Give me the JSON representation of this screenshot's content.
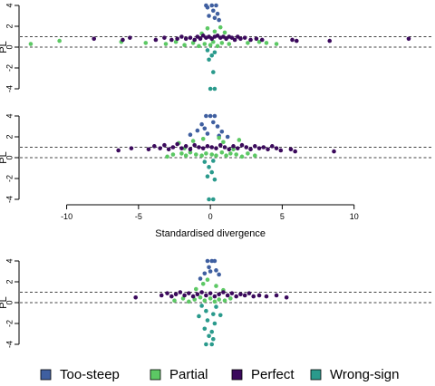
{
  "chart_data": {
    "type": "scatter",
    "xlabel": "Standardised divergence",
    "xlim": [
      -13,
      15
    ],
    "x_ticks": [
      -10,
      -5,
      0,
      5,
      10
    ],
    "colors": {
      "Too-steep": "#3f5fa0",
      "Partial": "#5cc864",
      "Perfect": "#3b0a5c",
      "Wrong-sign": "#2a9a8c"
    },
    "legend": {
      "placement": "bottom",
      "entries": [
        "Too-steep",
        "Partial",
        "Perfect",
        "Wrong-sign"
      ]
    },
    "panels": [
      {
        "ylabel": "PL",
        "ylim": [
          -4,
          4
        ],
        "y_ticks": [
          4,
          2,
          0,
          -2,
          -4
        ],
        "hlines": [
          0,
          1
        ],
        "show_x_axis": false,
        "series": [
          {
            "name": "Too-steep",
            "points": [
              [
                -0.3,
                4
              ],
              [
                0.1,
                4
              ],
              [
                0.4,
                4
              ],
              [
                -0.2,
                3.8
              ],
              [
                0.2,
                3.5
              ],
              [
                0.5,
                3.2
              ],
              [
                -0.1,
                3.0
              ],
              [
                0.3,
                2.8
              ],
              [
                0.6,
                2.6
              ]
            ]
          },
          {
            "name": "Partial",
            "points": [
              [
                -12.5,
                0.3
              ],
              [
                -10.5,
                0.6
              ],
              [
                -6.2,
                0.5
              ],
              [
                -4.5,
                0.4
              ],
              [
                -3.1,
                0.3
              ],
              [
                -2.4,
                0.5
              ],
              [
                -1.8,
                0.2
              ],
              [
                -1.2,
                0.4
              ],
              [
                -0.8,
                0.1
              ],
              [
                -0.4,
                0.3
              ],
              [
                0.0,
                0.2
              ],
              [
                0.2,
                0.5
              ],
              [
                0.5,
                0.1
              ],
              [
                0.8,
                0.4
              ],
              [
                1.3,
                0.3
              ],
              [
                2.6,
                0.4
              ],
              [
                3.4,
                0.5
              ],
              [
                3.9,
                0.4
              ],
              [
                4.6,
                0.3
              ],
              [
                -0.2,
                1.8
              ],
              [
                0.3,
                1.5
              ],
              [
                0.7,
                1.9
              ],
              [
                -0.6,
                1.3
              ],
              [
                1.0,
                1.4
              ]
            ]
          },
          {
            "name": "Perfect",
            "points": [
              [
                -8.1,
                0.8
              ],
              [
                -6.1,
                0.7
              ],
              [
                -5.6,
                0.9
              ],
              [
                -3.8,
                0.7
              ],
              [
                -3.2,
                0.9
              ],
              [
                -2.7,
                0.7
              ],
              [
                -2.3,
                0.8
              ],
              [
                -2.0,
                1.0
              ],
              [
                -1.7,
                0.8
              ],
              [
                -1.4,
                0.9
              ],
              [
                -1.1,
                0.7
              ],
              [
                -0.9,
                1.0
              ],
              [
                -0.7,
                0.8
              ],
              [
                -0.5,
                1.1
              ],
              [
                -0.3,
                0.9
              ],
              [
                -0.1,
                1.0
              ],
              [
                0.1,
                0.8
              ],
              [
                0.3,
                1.0
              ],
              [
                0.5,
                1.1
              ],
              [
                0.7,
                0.9
              ],
              [
                0.9,
                1.0
              ],
              [
                1.1,
                0.8
              ],
              [
                1.3,
                1.0
              ],
              [
                1.5,
                0.9
              ],
              [
                1.7,
                0.7
              ],
              [
                1.9,
                1.0
              ],
              [
                2.1,
                0.8
              ],
              [
                2.4,
                0.9
              ],
              [
                2.8,
                0.7
              ],
              [
                3.2,
                0.8
              ],
              [
                3.6,
                0.7
              ],
              [
                5.7,
                0.7
              ],
              [
                6.0,
                0.6
              ],
              [
                8.3,
                0.6
              ],
              [
                13.8,
                0.8
              ]
            ]
          },
          {
            "name": "Wrong-sign",
            "points": [
              [
                -0.2,
                -0.3
              ],
              [
                0.3,
                -0.5
              ],
              [
                0.1,
                -0.8
              ],
              [
                -0.1,
                -1.2
              ],
              [
                0.2,
                -2.4
              ],
              [
                0.0,
                -4.0
              ],
              [
                0.3,
                -4.0
              ]
            ]
          }
        ]
      },
      {
        "ylabel": "PL",
        "ylim": [
          -4,
          4
        ],
        "y_ticks": [
          4,
          2,
          0,
          -2,
          -4
        ],
        "hlines": [
          0,
          1
        ],
        "show_x_axis": true,
        "series": [
          {
            "name": "Too-steep",
            "points": [
              [
                -0.3,
                4
              ],
              [
                0.0,
                4
              ],
              [
                0.3,
                4
              ],
              [
                -0.6,
                3.2
              ],
              [
                0.2,
                3.4
              ],
              [
                -0.4,
                2.8
              ],
              [
                0.5,
                3.0
              ],
              [
                -0.9,
                2.6
              ],
              [
                0.8,
                2.5
              ],
              [
                -1.4,
                2.2
              ],
              [
                1.2,
                2.0
              ],
              [
                -0.2,
                2.3
              ],
              [
                0.6,
                2.1
              ]
            ]
          },
          {
            "name": "Partial",
            "points": [
              [
                -3.0,
                0.1
              ],
              [
                -2.6,
                0.3
              ],
              [
                -2.0,
                0.4
              ],
              [
                -1.7,
                0.2
              ],
              [
                -1.4,
                0.5
              ],
              [
                -1.0,
                0.3
              ],
              [
                -0.6,
                0.2
              ],
              [
                -0.3,
                0.4
              ],
              [
                0.1,
                0.3
              ],
              [
                0.4,
                0.2
              ],
              [
                0.8,
                0.5
              ],
              [
                1.1,
                0.2
              ],
              [
                1.4,
                0.4
              ],
              [
                1.8,
                0.3
              ],
              [
                2.2,
                0.1
              ],
              [
                2.6,
                0.4
              ],
              [
                3.1,
                0.2
              ],
              [
                -1.2,
                1.6
              ],
              [
                0.9,
                1.5
              ],
              [
                -2.2,
                1.4
              ],
              [
                2.0,
                1.7
              ],
              [
                -0.5,
                1.8
              ],
              [
                0.6,
                1.9
              ],
              [
                -1.8,
                0.9
              ],
              [
                1.6,
                0.8
              ]
            ]
          },
          {
            "name": "Perfect",
            "points": [
              [
                -6.4,
                0.7
              ],
              [
                -5.5,
                0.9
              ],
              [
                -4.3,
                0.8
              ],
              [
                -3.9,
                1.1
              ],
              [
                -3.5,
                0.9
              ],
              [
                -3.2,
                1.2
              ],
              [
                -2.9,
                0.8
              ],
              [
                -2.6,
                1.0
              ],
              [
                -2.3,
                1.3
              ],
              [
                -2.0,
                0.9
              ],
              [
                -1.7,
                1.1
              ],
              [
                -1.4,
                0.8
              ],
              [
                -1.1,
                1.2
              ],
              [
                -0.8,
                1.0
              ],
              [
                -0.5,
                0.9
              ],
              [
                -0.2,
                1.1
              ],
              [
                0.1,
                1.0
              ],
              [
                0.4,
                0.9
              ],
              [
                0.7,
                1.2
              ],
              [
                1.0,
                1.0
              ],
              [
                1.3,
                0.8
              ],
              [
                1.6,
                1.1
              ],
              [
                1.9,
                0.9
              ],
              [
                2.2,
                1.2
              ],
              [
                2.5,
                1.0
              ],
              [
                2.8,
                0.8
              ],
              [
                3.1,
                1.1
              ],
              [
                3.4,
                0.9
              ],
              [
                3.7,
                1.0
              ],
              [
                4.0,
                0.8
              ],
              [
                4.3,
                1.1
              ],
              [
                4.6,
                0.9
              ],
              [
                4.9,
                0.7
              ],
              [
                5.6,
                0.8
              ],
              [
                5.9,
                0.6
              ],
              [
                8.6,
                0.6
              ]
            ]
          },
          {
            "name": "Wrong-sign",
            "points": [
              [
                -0.4,
                -0.4
              ],
              [
                0.2,
                -0.3
              ],
              [
                -0.1,
                -0.9
              ],
              [
                0.1,
                -1.4
              ],
              [
                -0.2,
                -1.8
              ],
              [
                0.3,
                -2.1
              ],
              [
                -0.1,
                -4.0
              ],
              [
                0.2,
                -4.0
              ]
            ]
          }
        ]
      },
      {
        "ylabel": "PL",
        "ylim": [
          -4,
          4
        ],
        "y_ticks": [
          4,
          2,
          0,
          -2,
          -4
        ],
        "hlines": [
          0,
          1
        ],
        "show_x_axis": false,
        "series": [
          {
            "name": "Too-steep",
            "points": [
              [
                -0.2,
                4
              ],
              [
                0.1,
                4
              ],
              [
                0.3,
                4
              ],
              [
                -0.1,
                3.4
              ],
              [
                0.4,
                3.1
              ],
              [
                -0.4,
                2.8
              ],
              [
                0.6,
                2.7
              ],
              [
                0.0,
                3.0
              ],
              [
                -0.7,
                2.3
              ]
            ]
          },
          {
            "name": "Partial",
            "points": [
              [
                -2.5,
                0.2
              ],
              [
                -1.9,
                0.4
              ],
              [
                -1.5,
                0.1
              ],
              [
                -1.1,
                0.3
              ],
              [
                -0.7,
                0.5
              ],
              [
                -0.4,
                0.2
              ],
              [
                0.0,
                0.4
              ],
              [
                0.3,
                0.1
              ],
              [
                0.6,
                0.3
              ],
              [
                1.0,
                0.2
              ],
              [
                1.4,
                0.4
              ],
              [
                -0.5,
                1.8
              ],
              [
                0.4,
                1.6
              ],
              [
                -1.0,
                1.3
              ],
              [
                0.9,
                1.2
              ],
              [
                -0.2,
                2.2
              ]
            ]
          },
          {
            "name": "Perfect",
            "points": [
              [
                -5.2,
                0.5
              ],
              [
                -3.4,
                0.7
              ],
              [
                -3.0,
                0.9
              ],
              [
                -2.7,
                0.6
              ],
              [
                -2.4,
                0.8
              ],
              [
                -2.1,
                1.0
              ],
              [
                -1.8,
                0.7
              ],
              [
                -1.5,
                0.9
              ],
              [
                -1.2,
                0.6
              ],
              [
                -0.9,
                0.8
              ],
              [
                -0.6,
                1.0
              ],
              [
                -0.3,
                0.7
              ],
              [
                0.0,
                0.9
              ],
              [
                0.3,
                0.6
              ],
              [
                0.6,
                0.8
              ],
              [
                0.9,
                1.0
              ],
              [
                1.2,
                0.7
              ],
              [
                1.5,
                0.9
              ],
              [
                1.8,
                0.6
              ],
              [
                2.1,
                0.8
              ],
              [
                2.4,
                0.7
              ],
              [
                2.7,
                0.9
              ],
              [
                3.0,
                0.6
              ],
              [
                3.4,
                0.7
              ],
              [
                3.9,
                0.6
              ],
              [
                4.6,
                0.7
              ],
              [
                5.3,
                0.5
              ]
            ]
          },
          {
            "name": "Wrong-sign",
            "points": [
              [
                -0.6,
                -0.3
              ],
              [
                0.4,
                -0.4
              ],
              [
                -0.3,
                -0.8
              ],
              [
                0.2,
                -1.1
              ],
              [
                -0.8,
                -1.3
              ],
              [
                0.7,
                -1.2
              ],
              [
                -0.2,
                -1.7
              ],
              [
                0.3,
                -2.0
              ],
              [
                -0.4,
                -2.5
              ],
              [
                0.1,
                -2.8
              ],
              [
                -0.1,
                -3.2
              ],
              [
                0.2,
                -3.5
              ],
              [
                -0.3,
                -4.0
              ],
              [
                0.1,
                -4.0
              ]
            ]
          }
        ]
      }
    ]
  }
}
